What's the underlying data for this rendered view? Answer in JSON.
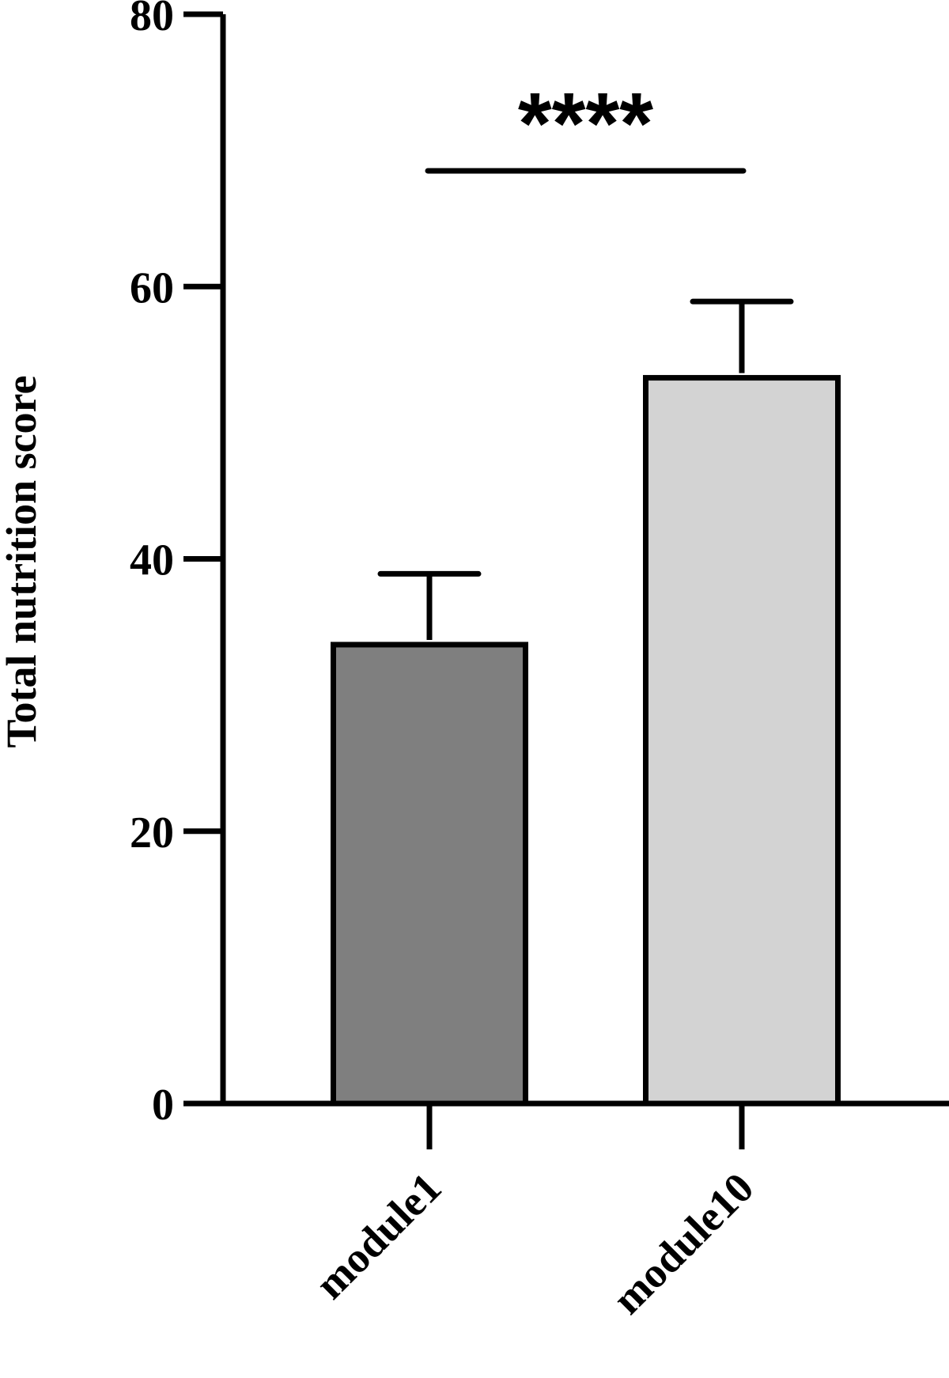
{
  "chart_data": {
    "type": "bar",
    "categories": [
      "module1",
      "module10"
    ],
    "values": [
      33.7,
      53.3
    ],
    "error_upper": [
      38.9,
      58.9
    ],
    "bar_colors": [
      "#7f7f7f",
      "#d3d3d3"
    ],
    "ylabel": "Total nutrition score",
    "ylim": [
      0,
      80
    ],
    "yticks": [
      0,
      20,
      40,
      60,
      80
    ],
    "ytick_labels": [
      "0",
      "20",
      "40",
      "60",
      "80"
    ],
    "grid": false,
    "significance": {
      "label": "****",
      "between": [
        "module1",
        "module10"
      ],
      "y": 68.5
    }
  }
}
